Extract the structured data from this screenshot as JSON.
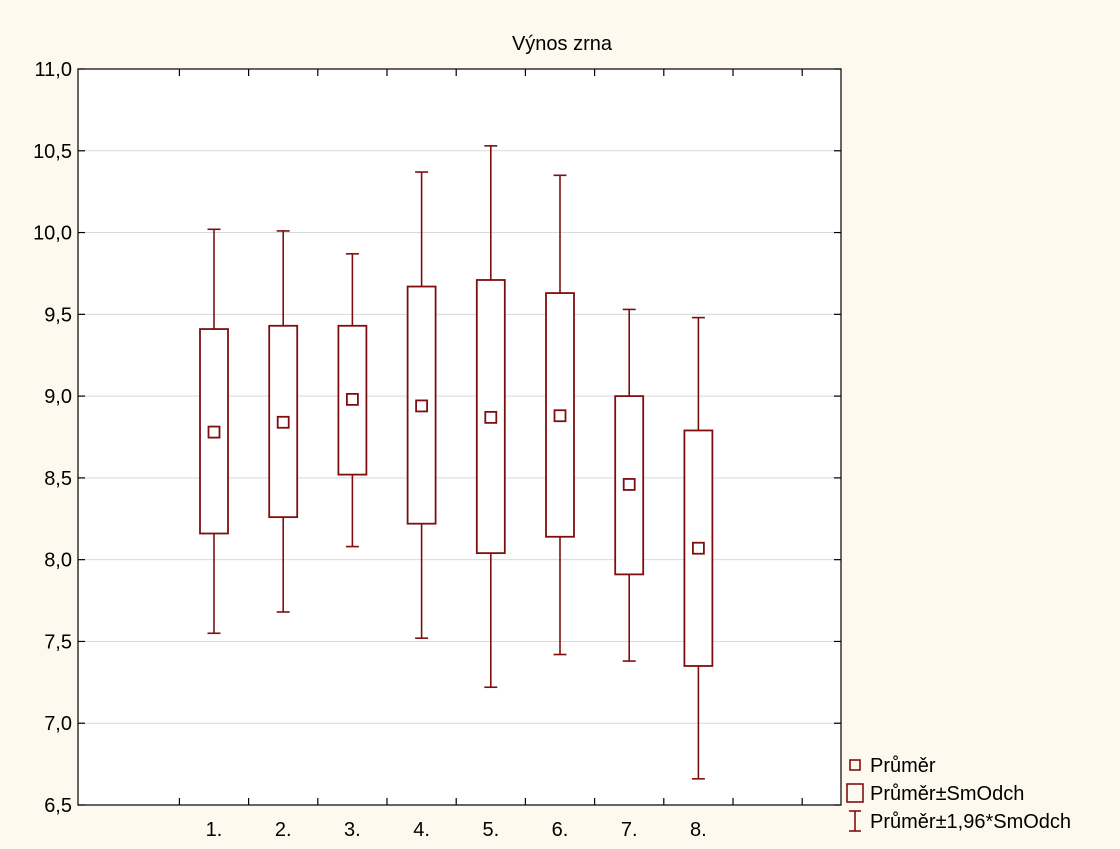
{
  "chart_data": {
    "type": "box",
    "title": "Výnos zrna",
    "xlabel": "",
    "ylabel": "",
    "categories": [
      "1.",
      "2.",
      "3.",
      "4.",
      "5.",
      "6.",
      "7.",
      "8."
    ],
    "ylim": [
      6.5,
      11.0
    ],
    "yticks": [
      6.5,
      7.0,
      7.5,
      8.0,
      8.5,
      9.0,
      9.5,
      10.0,
      10.5,
      11.0
    ],
    "ytick_labels": [
      "6,5",
      "7,0",
      "7,5",
      "8,0",
      "8,5",
      "9,0",
      "9,5",
      "10,0",
      "10,5",
      "11,0"
    ],
    "grid": true,
    "legend_position": "bottom-right, outside plot",
    "color": "#7f0f0f",
    "series": [
      {
        "category": "1.",
        "mean": 8.78,
        "box_low": 8.16,
        "box_high": 9.41,
        "whisker_low": 7.55,
        "whisker_high": 10.02
      },
      {
        "category": "2.",
        "mean": 8.84,
        "box_low": 8.26,
        "box_high": 9.43,
        "whisker_low": 7.68,
        "whisker_high": 10.01
      },
      {
        "category": "3.",
        "mean": 8.98,
        "box_low": 8.52,
        "box_high": 9.43,
        "whisker_low": 8.08,
        "whisker_high": 9.87
      },
      {
        "category": "4.",
        "mean": 8.94,
        "box_low": 8.22,
        "box_high": 9.67,
        "whisker_low": 7.52,
        "whisker_high": 10.37
      },
      {
        "category": "5.",
        "mean": 8.87,
        "box_low": 8.04,
        "box_high": 9.71,
        "whisker_low": 7.22,
        "whisker_high": 10.53
      },
      {
        "category": "6.",
        "mean": 8.88,
        "box_low": 8.14,
        "box_high": 9.63,
        "whisker_low": 7.42,
        "whisker_high": 10.35
      },
      {
        "category": "7.",
        "mean": 8.46,
        "box_low": 7.91,
        "box_high": 9.0,
        "whisker_low": 7.38,
        "whisker_high": 9.53
      },
      {
        "category": "8.",
        "mean": 8.07,
        "box_low": 7.35,
        "box_high": 8.79,
        "whisker_low": 6.66,
        "whisker_high": 9.48
      }
    ],
    "legend": [
      {
        "symbol": "mean-square",
        "label": "Průměr"
      },
      {
        "symbol": "box",
        "label": "Průměr±SmOdch"
      },
      {
        "symbol": "whisker",
        "label": "Průměr±1,96*SmOdch"
      }
    ]
  }
}
